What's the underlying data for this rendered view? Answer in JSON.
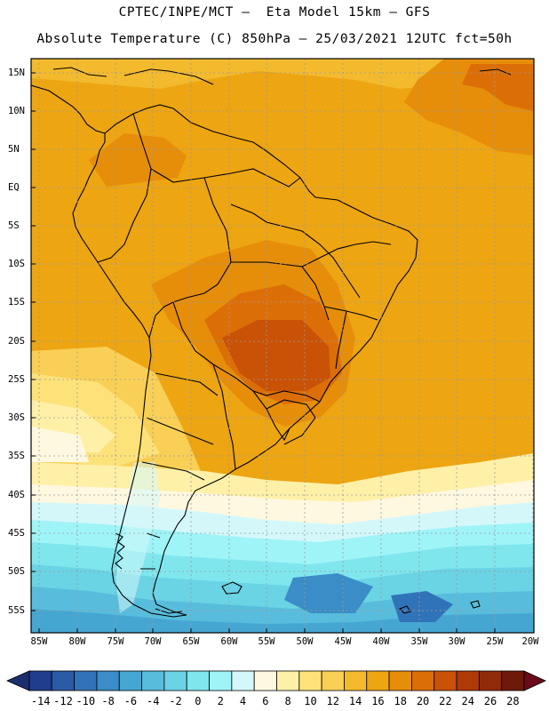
{
  "header": {
    "line1": "CPTEC/INPE/MCT –  Eta Model 15km – GFS",
    "line2": "Absolute Temperature (C) 850hPa – 25/03/2021 12UTC fct=50h"
  },
  "map": {
    "region": "South America",
    "lat_labels": [
      "15N",
      "10N",
      "5N",
      "EQ",
      "5S",
      "10S",
      "15S",
      "20S",
      "25S",
      "30S",
      "35S",
      "40S",
      "45S",
      "50S",
      "55S"
    ],
    "lon_labels": [
      "85W",
      "80W",
      "75W",
      "70W",
      "65W",
      "60W",
      "55W",
      "50W",
      "45W",
      "40W",
      "35W",
      "30W",
      "25W",
      "20W"
    ]
  },
  "colorbar": {
    "labels": [
      "-14",
      "-12",
      "-10",
      "-8",
      "-6",
      "-4",
      "-2",
      "0",
      "2",
      "4",
      "6",
      "8",
      "10",
      "12",
      "14",
      "16",
      "18",
      "20",
      "22",
      "24",
      "26",
      "28"
    ],
    "colors": [
      "#203c8c",
      "#2b5aa6",
      "#3173b8",
      "#3a8dc6",
      "#46a6d2",
      "#58bddc",
      "#6ad3e4",
      "#7fe6ee",
      "#9ff4f8",
      "#d4f8fa",
      "#fff8e0",
      "#fff0a8",
      "#fde27a",
      "#f9cf55",
      "#f3ba2d",
      "#eda512",
      "#e68e0a",
      "#dc6e07",
      "#c95206",
      "#ad3a07",
      "#8f2a0a",
      "#6e1a0a"
    ],
    "under_color": "#1c2e6e",
    "over_color": "#6a0a1a"
  }
}
